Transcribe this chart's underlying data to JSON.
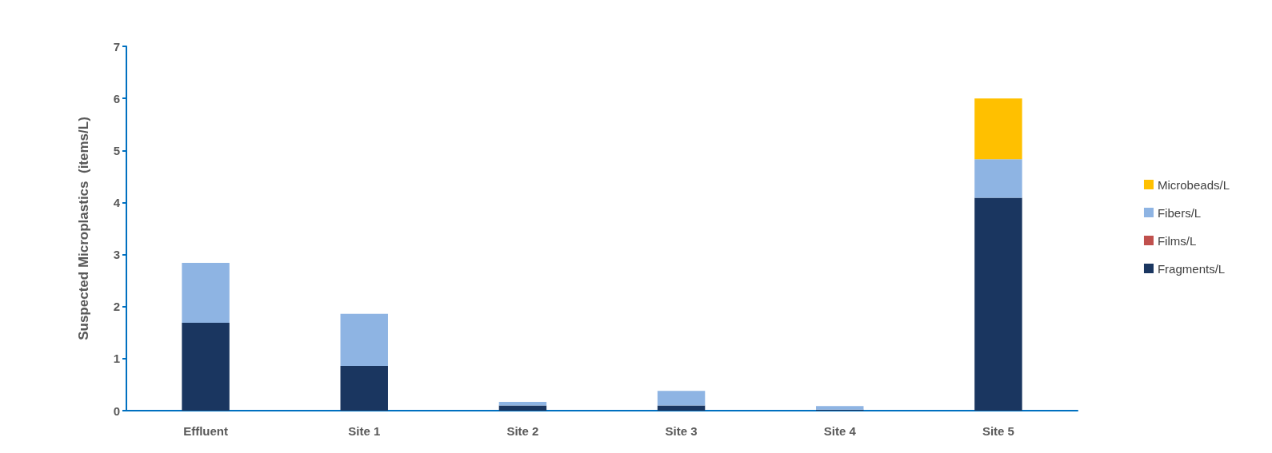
{
  "chart_data": {
    "type": "bar",
    "stacked": true,
    "ylabel": "Suspected Microplastics  (items/L)",
    "categories": [
      "Effluent",
      "Site 1",
      "Site 2",
      "Site 3",
      "Site 4",
      "Site 5"
    ],
    "series": [
      {
        "name": "Fragments/L",
        "color": "#1a3660",
        "values": [
          1.69,
          0.86,
          0.1,
          0.1,
          0.02,
          4.09
        ]
      },
      {
        "name": "Films/L",
        "color": "#c0504d",
        "values": [
          0,
          0,
          0,
          0,
          0,
          0
        ]
      },
      {
        "name": "Fibers/L",
        "color": "#8eb4e3",
        "values": [
          1.15,
          1.0,
          0.07,
          0.28,
          0.07,
          0.74
        ]
      },
      {
        "name": "Microbeads/L",
        "color": "#ffc000",
        "values": [
          0,
          0,
          0,
          0,
          0,
          1.17
        ]
      }
    ],
    "ylim": [
      0,
      7
    ],
    "yticks": [
      0,
      1,
      2,
      3,
      4,
      5,
      6,
      7
    ],
    "grid": false,
    "legend": "right"
  }
}
